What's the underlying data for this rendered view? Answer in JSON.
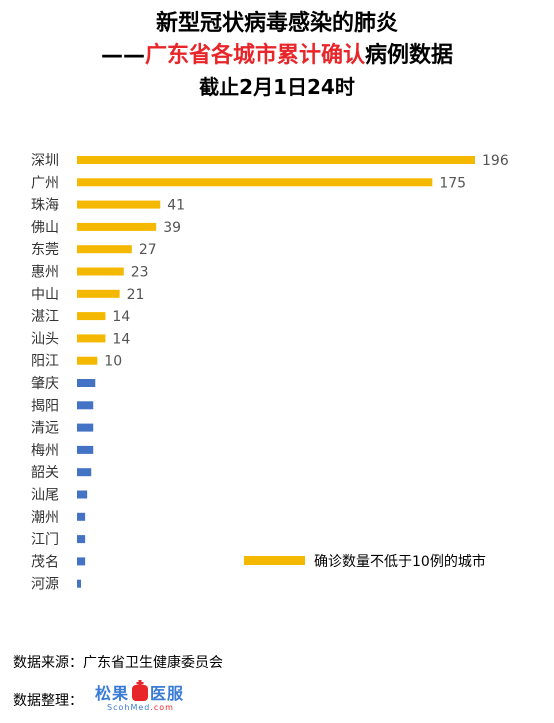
{
  "title": {
    "line1": "新型冠状病毒感染的肺炎",
    "line2_prefix": "——",
    "line2_red": "广东省各城市累计确认",
    "line2_suffix": "病例数据",
    "line3": "截止2月1日24时"
  },
  "colors": {
    "high": "#f5b800",
    "low": "#4472c4",
    "title_red": "#e8262a"
  },
  "chart_data": {
    "type": "bar",
    "orientation": "horizontal",
    "categories": [
      "深圳",
      "广州",
      "珠海",
      "佛山",
      "东莞",
      "惠州",
      "中山",
      "湛江",
      "汕头",
      "阳江",
      "肇庆",
      "揭阳",
      "清远",
      "梅州",
      "韶关",
      "汕尾",
      "潮州",
      "江门",
      "茂名",
      "河源"
    ],
    "values": [
      196,
      175,
      41,
      39,
      27,
      23,
      21,
      14,
      14,
      10,
      9,
      8,
      8,
      8,
      7,
      5,
      4,
      4,
      4,
      2
    ],
    "value_labels_shown_for_first": 10,
    "legend": {
      "label": "确诊数量不低于10例的城市",
      "position": "bottom-right"
    },
    "xlim": [
      0,
      196
    ],
    "grid": false
  },
  "footer": {
    "source_label": "数据来源：广东省卫生健康委员会",
    "organizer_label": "数据整理：",
    "logo_text": "松果",
    "logo_text2": "医服",
    "logo_sub": "ScohMed",
    "logo_sub2": ".com"
  }
}
